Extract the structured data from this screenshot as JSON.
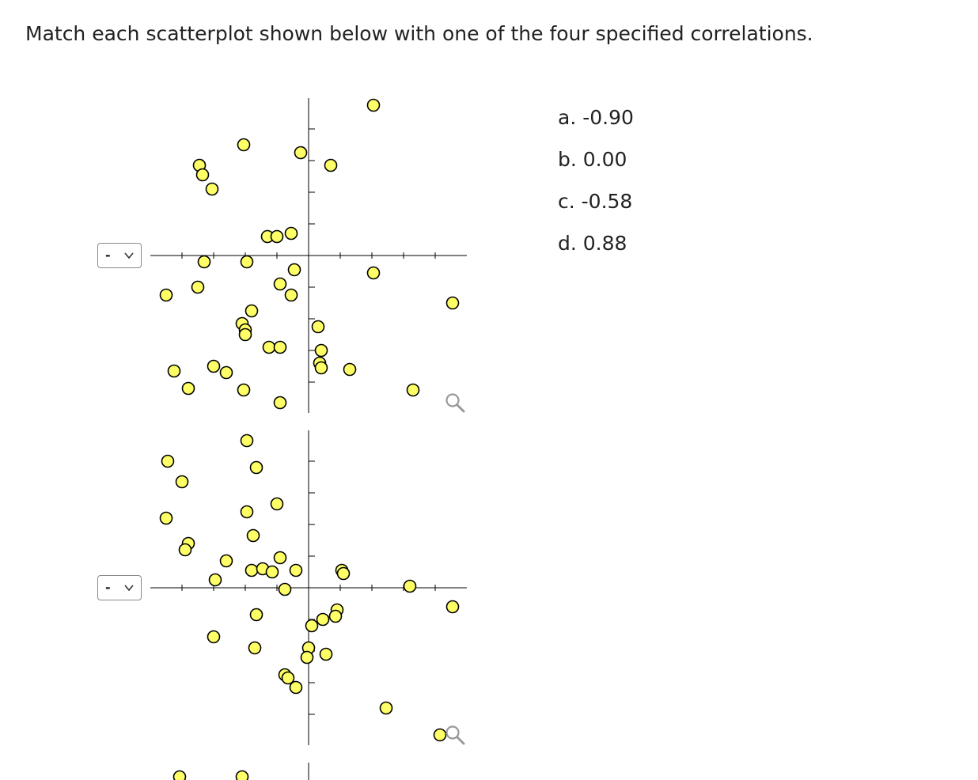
{
  "question": "Match each scatterplot shown below with one of the four specified correlations.",
  "options": [
    {
      "letter": "a.",
      "value": "-0.90"
    },
    {
      "letter": "b.",
      "value": "0.00"
    },
    {
      "letter": "c.",
      "value": "-0.58"
    },
    {
      "letter": "d.",
      "value": "0.88"
    }
  ],
  "selects": [
    {
      "selected": "-"
    },
    {
      "selected": "-"
    }
  ],
  "colors": {
    "point_fill": "#ffff66",
    "point_stroke": "#000000",
    "axis": "#000000"
  },
  "icons": {
    "zoom": "magnifier-icon",
    "dropdown": "chevron-down-icon"
  },
  "chart_data": [
    {
      "type": "scatter",
      "xlim": [
        -10,
        10
      ],
      "ylim": [
        -10,
        10
      ],
      "grid": false,
      "points": [
        [
          4.1,
          9.5
        ],
        [
          -4.1,
          7.0
        ],
        [
          -0.5,
          6.5
        ],
        [
          1.4,
          5.7
        ],
        [
          -6.9,
          5.7
        ],
        [
          -6.7,
          5.1
        ],
        [
          -6.1,
          4.2
        ],
        [
          -2.6,
          1.2
        ],
        [
          -2.0,
          1.2
        ],
        [
          -1.1,
          1.4
        ],
        [
          -6.6,
          -0.4
        ],
        [
          -3.9,
          -0.4
        ],
        [
          -0.9,
          -0.9
        ],
        [
          4.1,
          -1.1
        ],
        [
          -9.0,
          -2.5
        ],
        [
          -7.0,
          -2.0
        ],
        [
          -1.8,
          -1.8
        ],
        [
          -1.1,
          -2.5
        ],
        [
          9.1,
          -3.0
        ],
        [
          -3.6,
          -3.5
        ],
        [
          -4.2,
          -4.3
        ],
        [
          -4.0,
          -4.7
        ],
        [
          -4.0,
          -5.0
        ],
        [
          0.6,
          -4.5
        ],
        [
          -2.5,
          -5.8
        ],
        [
          -1.8,
          -5.8
        ],
        [
          0.8,
          -6.0
        ],
        [
          0.7,
          -6.8
        ],
        [
          0.8,
          -7.1
        ],
        [
          2.6,
          -7.2
        ],
        [
          -8.5,
          -7.3
        ],
        [
          -6.0,
          -7.0
        ],
        [
          -5.2,
          -7.4
        ],
        [
          -7.6,
          -8.4
        ],
        [
          -4.1,
          -8.5
        ],
        [
          6.6,
          -8.5
        ],
        [
          -1.8,
          -9.3
        ]
      ]
    },
    {
      "type": "scatter",
      "xlim": [
        -10,
        10
      ],
      "ylim": [
        -10,
        10
      ],
      "grid": false,
      "points": [
        [
          -3.9,
          9.3
        ],
        [
          -8.9,
          8.0
        ],
        [
          -3.3,
          7.6
        ],
        [
          -8.0,
          6.7
        ],
        [
          -2.0,
          5.3
        ],
        [
          -3.9,
          4.8
        ],
        [
          -9.0,
          4.4
        ],
        [
          -3.5,
          3.3
        ],
        [
          -7.6,
          2.8
        ],
        [
          -7.8,
          2.4
        ],
        [
          -1.8,
          1.9
        ],
        [
          -5.2,
          1.7
        ],
        [
          -3.6,
          1.1
        ],
        [
          -2.9,
          1.2
        ],
        [
          -2.3,
          1.0
        ],
        [
          -0.8,
          1.1
        ],
        [
          -5.9,
          0.5
        ],
        [
          2.1,
          1.1
        ],
        [
          2.2,
          0.9
        ],
        [
          -1.5,
          -0.1
        ],
        [
          6.4,
          0.1
        ],
        [
          9.1,
          -1.2
        ],
        [
          -3.3,
          -1.7
        ],
        [
          1.8,
          -1.4
        ],
        [
          1.7,
          -1.8
        ],
        [
          0.9,
          -2.0
        ],
        [
          0.2,
          -2.4
        ],
        [
          -6.0,
          -3.1
        ],
        [
          -3.4,
          -3.8
        ],
        [
          0.0,
          -3.8
        ],
        [
          1.1,
          -4.2
        ],
        [
          -0.1,
          -4.4
        ],
        [
          -1.5,
          -5.5
        ],
        [
          -1.3,
          -5.7
        ],
        [
          -0.8,
          -6.3
        ],
        [
          4.9,
          -7.6
        ],
        [
          8.3,
          -9.3
        ]
      ]
    }
  ]
}
